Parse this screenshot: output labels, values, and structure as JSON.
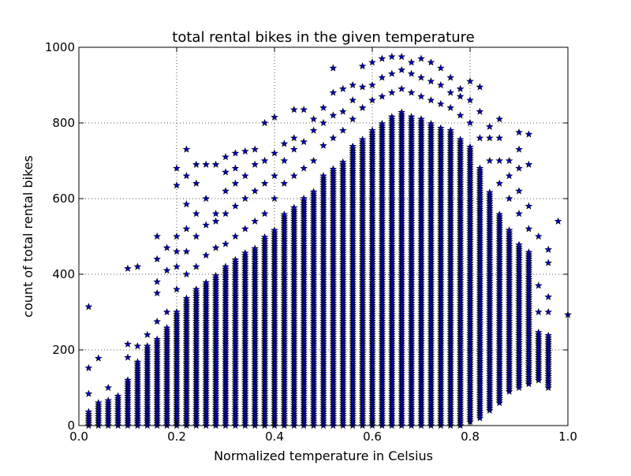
{
  "chart_data": {
    "type": "scatter",
    "title": "total rental bikes in the given temperature",
    "xlabel": "Normalized temperature in Celsius",
    "ylabel": "count of total rental bikes",
    "xlim": [
      0.0,
      1.0
    ],
    "ylim": [
      0,
      1000
    ],
    "xticks": [
      0.0,
      0.2,
      0.4,
      0.6,
      0.8,
      1.0
    ],
    "xtick_labels": [
      "0.0",
      "0.2",
      "0.4",
      "0.6",
      "0.8",
      "1.0"
    ],
    "yticks": [
      0,
      200,
      400,
      600,
      800,
      1000
    ],
    "ytick_labels": [
      "0",
      "200",
      "400",
      "600",
      "800",
      "1000"
    ],
    "grid": true,
    "legend": "none",
    "marker": "star",
    "marker_color": "#0000CC",
    "marker_edge_color": "#000000",
    "x_step": 0.02,
    "columns": [
      {
        "x": 0.02,
        "ymax": 40,
        "outliers": [
          84,
          152,
          314
        ]
      },
      {
        "x": 0.04,
        "ymax": 60,
        "outliers": [
          178
        ]
      },
      {
        "x": 0.06,
        "ymax": 70,
        "outliers": [
          100
        ]
      },
      {
        "x": 0.08,
        "ymax": 80,
        "outliers": []
      },
      {
        "x": 0.1,
        "ymax": 120,
        "outliers": [
          180,
          215,
          415
        ]
      },
      {
        "x": 0.12,
        "ymax": 170,
        "outliers": [
          210,
          420
        ]
      },
      {
        "x": 0.14,
        "ymax": 210,
        "outliers": [
          240
        ]
      },
      {
        "x": 0.16,
        "ymax": 230,
        "outliers": [
          275,
          350,
          380,
          440,
          500
        ]
      },
      {
        "x": 0.18,
        "ymax": 260,
        "outliers": [
          300,
          410,
          470
        ]
      },
      {
        "x": 0.2,
        "ymax": 300,
        "outliers": [
          360,
          420,
          460,
          500,
          635,
          680
        ]
      },
      {
        "x": 0.22,
        "ymax": 340,
        "outliers": [
          400,
          460,
          520,
          585,
          660,
          730
        ]
      },
      {
        "x": 0.24,
        "ymax": 360,
        "outliers": [
          420,
          500,
          560,
          640,
          690
        ]
      },
      {
        "x": 0.26,
        "ymax": 380,
        "outliers": [
          450,
          530,
          600,
          690
        ]
      },
      {
        "x": 0.28,
        "ymax": 400,
        "outliers": [
          470,
          540,
          560,
          690
        ]
      },
      {
        "x": 0.3,
        "ymax": 420,
        "outliers": [
          480,
          560,
          620,
          670,
          710
        ]
      },
      {
        "x": 0.32,
        "ymax": 440,
        "outliers": [
          500,
          580,
          640,
          680,
          720
        ]
      },
      {
        "x": 0.34,
        "ymax": 460,
        "outliers": [
          520,
          600,
          660,
          725
        ]
      },
      {
        "x": 0.36,
        "ymax": 470,
        "outliers": [
          540,
          620,
          690,
          730
        ]
      },
      {
        "x": 0.38,
        "ymax": 500,
        "outliers": [
          560,
          640,
          700,
          800
        ]
      },
      {
        "x": 0.4,
        "ymax": 520,
        "outliers": [
          600,
          660,
          720,
          815
        ]
      },
      {
        "x": 0.42,
        "ymax": 560,
        "outliers": [
          640,
          700,
          745
        ]
      },
      {
        "x": 0.44,
        "ymax": 580,
        "outliers": [
          660,
          730,
          760,
          835
        ]
      },
      {
        "x": 0.46,
        "ymax": 600,
        "outliers": [
          680,
          750,
          835
        ]
      },
      {
        "x": 0.48,
        "ymax": 620,
        "outliers": [
          700,
          780,
          810
        ]
      },
      {
        "x": 0.5,
        "ymax": 660,
        "outliers": [
          740,
          800,
          840
        ]
      },
      {
        "x": 0.52,
        "ymax": 680,
        "outliers": [
          760,
          820,
          880,
          945
        ]
      },
      {
        "x": 0.54,
        "ymax": 700,
        "outliers": [
          780,
          830,
          890
        ]
      },
      {
        "x": 0.56,
        "ymax": 740,
        "outliers": [
          810,
          860,
          900
        ]
      },
      {
        "x": 0.58,
        "ymax": 760,
        "outliers": [
          840,
          895,
          950
        ]
      },
      {
        "x": 0.6,
        "ymax": 780,
        "outliers": [
          860,
          900,
          960
        ]
      },
      {
        "x": 0.62,
        "ymax": 800,
        "outliers": [
          870,
          920,
          970
        ]
      },
      {
        "x": 0.64,
        "ymax": 820,
        "outliers": [
          880,
          930,
          975
        ]
      },
      {
        "x": 0.66,
        "ymax": 830,
        "outliers": [
          890,
          940,
          975
        ]
      },
      {
        "x": 0.68,
        "ymax": 820,
        "outliers": [
          880,
          930,
          960
        ]
      },
      {
        "x": 0.7,
        "ymax": 810,
        "outliers": [
          870,
          920,
          970
        ]
      },
      {
        "x": 0.72,
        "ymax": 800,
        "outliers": [
          860,
          910,
          960
        ]
      },
      {
        "x": 0.74,
        "ymax": 790,
        "outliers": [
          850,
          900,
          945
        ]
      },
      {
        "x": 0.76,
        "ymax": 780,
        "outliers": [
          840,
          880,
          920
        ]
      },
      {
        "x": 0.78,
        "ymax": 760,
        "outliers": [
          820,
          870,
          890
        ]
      },
      {
        "x": 0.8,
        "ymax": 740,
        "outliers": [
          800,
          860,
          910
        ]
      },
      {
        "x": 0.82,
        "ymax": 680,
        "outliers": [
          760,
          830,
          895
        ]
      },
      {
        "x": 0.84,
        "ymax": 620,
        "outliers": [
          700,
          760,
          790
        ]
      },
      {
        "x": 0.86,
        "ymax": 560,
        "outliers": [
          640,
          700,
          760,
          810
        ]
      },
      {
        "x": 0.88,
        "ymax": 520,
        "outliers": [
          600,
          660,
          700
        ]
      },
      {
        "x": 0.9,
        "ymax": 480,
        "outliers": [
          560,
          620,
          680,
          730,
          775
        ]
      },
      {
        "x": 0.92,
        "ymax": 460,
        "outliers": [
          520,
          580,
          690,
          770
        ]
      },
      {
        "x": 0.94,
        "ymax": 250,
        "outliers": [
          300,
          370,
          500
        ]
      },
      {
        "x": 0.96,
        "ymax": 240,
        "outliers": [
          300,
          340,
          430,
          465
        ]
      },
      {
        "x": 0.98,
        "ymax": 0,
        "outliers": [
          540
        ]
      },
      {
        "x": 1.0,
        "ymax": 0,
        "outliers": [
          293
        ]
      }
    ],
    "column_lower": {
      "0.02": 0,
      "0.04": 0,
      "0.06": 0,
      "0.08": 0,
      "0.10": 0,
      "0.12": 0,
      "0.14": 0,
      "0.16": 0,
      "0.18": 0,
      "0.20": 0,
      "0.22": 0,
      "0.24": 0,
      "0.26": 0,
      "0.28": 0,
      "0.30": 0,
      "0.32": 0,
      "0.34": 0,
      "0.36": 0,
      "0.38": 0,
      "0.40": 0,
      "0.42": 0,
      "0.44": 0,
      "0.46": 0,
      "0.48": 0,
      "0.50": 0,
      "0.52": 0,
      "0.54": 0,
      "0.56": 0,
      "0.58": 0,
      "0.60": 0,
      "0.62": 0,
      "0.64": 0,
      "0.66": 0,
      "0.68": 0,
      "0.70": 0,
      "0.72": 0,
      "0.74": 0,
      "0.76": 0,
      "0.78": 0,
      "0.80": 10,
      "0.82": 20,
      "0.84": 40,
      "0.86": 60,
      "0.88": 90,
      "0.90": 100,
      "0.92": 110,
      "0.94": 120,
      "0.96": 100,
      "0.98": 540,
      "1.00": 293
    }
  }
}
